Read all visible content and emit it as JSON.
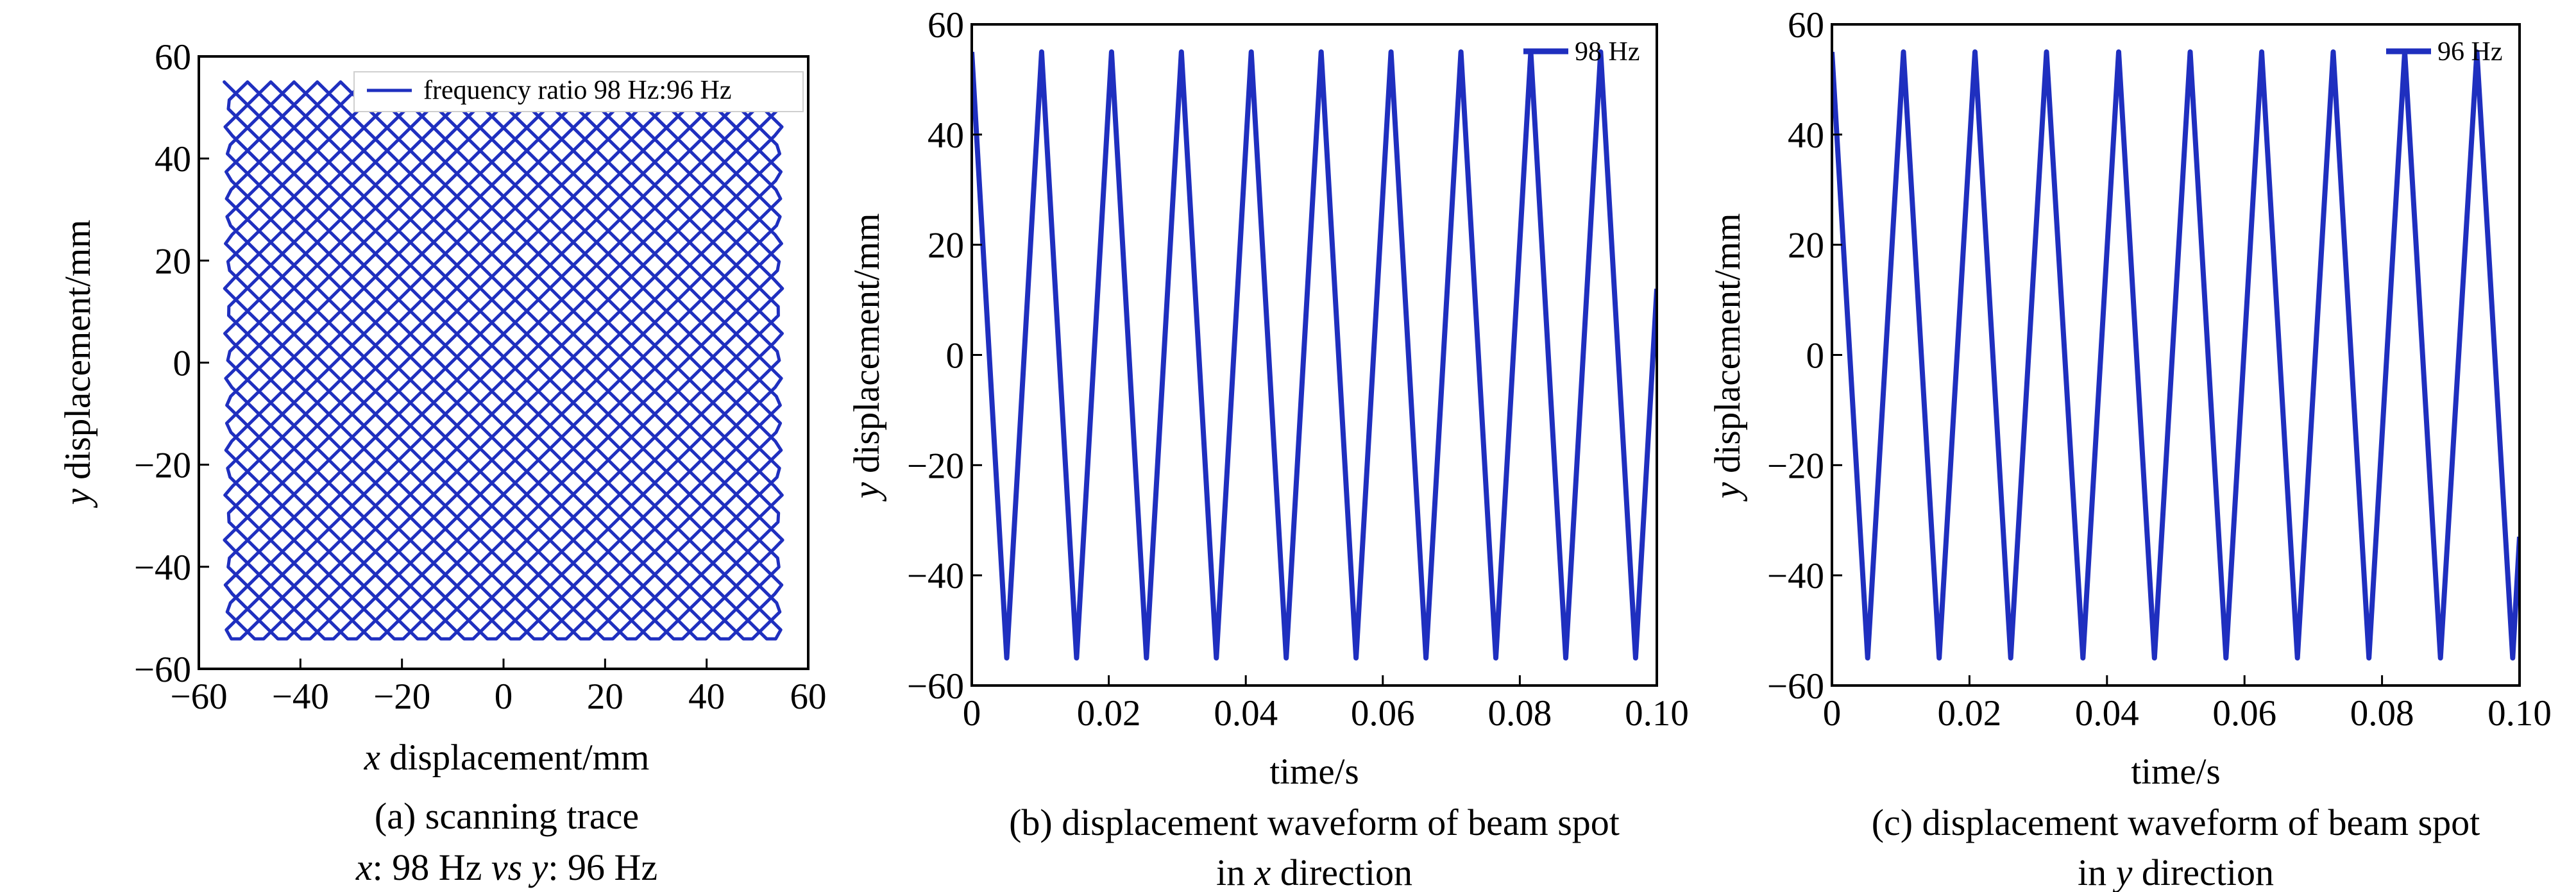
{
  "colors": {
    "series": "#1f2fbf",
    "axis": "#000000",
    "background": "#ffffff"
  },
  "chart_data": [
    {
      "id": "a",
      "type": "line",
      "subtype": "lissajous",
      "title": "",
      "caption_line1": "(a) scanning trace",
      "caption_line2": {
        "x_label": "x",
        "x_text": ": 98 Hz ",
        "vs": "vs",
        "y_label": " y",
        "y_text": ": 96 Hz"
      },
      "xlabel": {
        "var": "x",
        "text": " displacement/mm"
      },
      "ylabel": {
        "var": "y",
        "text": " displacement/mm"
      },
      "xlim": [
        -60,
        60
      ],
      "ylim": [
        -60,
        60
      ],
      "xticks": [
        -60,
        -40,
        -20,
        0,
        20,
        40,
        60
      ],
      "xtick_labels": [
        "−60",
        "−40",
        "−20",
        "0",
        "20",
        "40",
        "60"
      ],
      "yticks": [
        -60,
        -40,
        -20,
        0,
        20,
        40,
        60
      ],
      "ytick_labels": [
        "−60",
        "−40",
        "−20",
        "0",
        "20",
        "40",
        "60"
      ],
      "grid": false,
      "legend": {
        "position": "top-right",
        "entries": [
          "frequency ratio 98 Hz:96 Hz"
        ]
      },
      "series": [
        {
          "name": "frequency ratio 98 Hz:96 Hz",
          "x_frequency_hz": 98,
          "y_frequency_hz": 96,
          "amplitude_mm": 55,
          "waveform": "triangle",
          "x_range": [
            -55,
            55
          ],
          "y_range": [
            -55,
            55
          ]
        }
      ]
    },
    {
      "id": "b",
      "type": "line",
      "title": "",
      "caption_line1": "(b) displacement waveform of beam spot",
      "caption_line2": {
        "prefix": "in ",
        "var": "x",
        "suffix": " direction"
      },
      "xlabel": {
        "var": "",
        "text": "time/s"
      },
      "ylabel": {
        "var": "y",
        "text": " displacement/mm"
      },
      "xlim": [
        0,
        0.1
      ],
      "ylim": [
        -60,
        60
      ],
      "xticks": [
        0,
        0.02,
        0.04,
        0.06,
        0.08,
        0.1
      ],
      "xtick_labels": [
        "0",
        "0.02",
        "0.04",
        "0.06",
        "0.08",
        "0.10"
      ],
      "yticks": [
        -60,
        -40,
        -20,
        0,
        20,
        40,
        60
      ],
      "ytick_labels": [
        "−60",
        "−40",
        "−20",
        "0",
        "20",
        "40",
        "60"
      ],
      "grid": false,
      "legend": {
        "position": "top-right",
        "entries": [
          "98 Hz"
        ]
      },
      "series": [
        {
          "name": "98 Hz",
          "x": [
            0,
            0.0051,
            0.0102,
            0.0153,
            0.0204,
            0.0255,
            0.0306,
            0.0357,
            0.0408,
            0.0459,
            0.051,
            0.0561,
            0.0612,
            0.0663,
            0.0714,
            0.0765,
            0.0816,
            0.0867,
            0.0918,
            0.0969,
            0.1
          ],
          "y": [
            55,
            -55,
            55,
            -55,
            55,
            -55,
            55,
            -55,
            55,
            -55,
            55,
            -55,
            55,
            -55,
            55,
            -55,
            55,
            -55,
            55,
            -55,
            12
          ]
        }
      ]
    },
    {
      "id": "c",
      "type": "line",
      "title": "",
      "caption_line1": "(c) displacement waveform of beam spot",
      "caption_line2": {
        "prefix": "in ",
        "var": "y",
        "suffix": " direction"
      },
      "xlabel": {
        "var": "",
        "text": "time/s"
      },
      "ylabel": {
        "var": "y",
        "text": " displacement/mm"
      },
      "xlim": [
        0,
        0.1
      ],
      "ylim": [
        -60,
        60
      ],
      "xticks": [
        0,
        0.02,
        0.04,
        0.06,
        0.08,
        0.1
      ],
      "xtick_labels": [
        "0",
        "0.02",
        "0.04",
        "0.06",
        "0.08",
        "0.10"
      ],
      "yticks": [
        -60,
        -40,
        -20,
        0,
        20,
        40,
        60
      ],
      "ytick_labels": [
        "−60",
        "−40",
        "−20",
        "0",
        "20",
        "40",
        "60"
      ],
      "grid": false,
      "legend": {
        "position": "top-right",
        "entries": [
          "96 Hz"
        ]
      },
      "series": [
        {
          "name": "96 Hz",
          "x": [
            0,
            0.0052,
            0.0104,
            0.0156,
            0.0208,
            0.026,
            0.0312,
            0.0365,
            0.0417,
            0.0469,
            0.0521,
            0.0573,
            0.0625,
            0.0677,
            0.0729,
            0.0781,
            0.0833,
            0.0885,
            0.0938,
            0.099,
            0.1
          ],
          "y": [
            55,
            -55,
            55,
            -55,
            55,
            -55,
            55,
            -55,
            55,
            -55,
            55,
            -55,
            55,
            -55,
            55,
            -55,
            55,
            -55,
            55,
            -55,
            -33
          ]
        }
      ]
    }
  ]
}
